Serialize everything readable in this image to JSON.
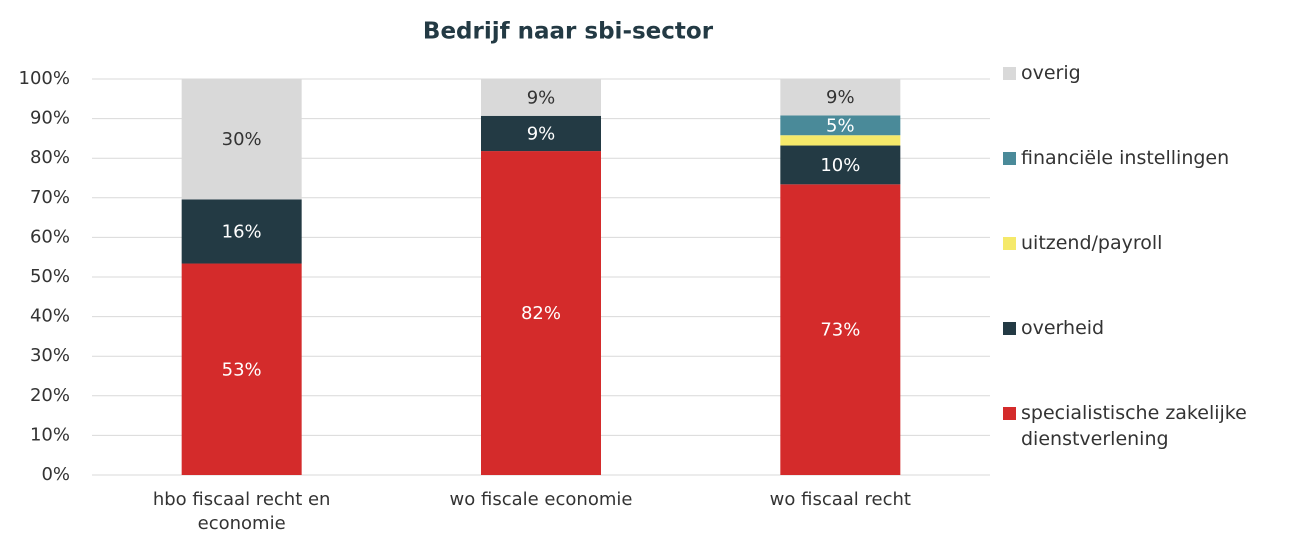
{
  "chart_data": {
    "type": "stacked_bar",
    "title": "Bedrijf naar sbi-sector",
    "categories": [
      "hbo fiscaal recht en economie",
      "wo fiscale economie",
      "wo fiscaal recht"
    ],
    "series": [
      {
        "name": "specialistische zakelijke dienstverlening",
        "color": "#d42b2b",
        "values": [
          53.4,
          81.8,
          73.4
        ],
        "value_labels": [
          "53%",
          "82%",
          "73%"
        ]
      },
      {
        "name": "overheid",
        "color": "#233a44",
        "values": [
          16.2,
          8.9,
          9.8
        ],
        "value_labels": [
          "16%",
          "9%",
          "10%"
        ]
      },
      {
        "name": "uitzend/payroll",
        "color": "#f5e96a",
        "values": [
          null,
          null,
          2.6
        ],
        "value_labels": [
          null,
          null,
          null
        ]
      },
      {
        "name": "financiële instellingen",
        "color": "#4a8a99",
        "values": [
          null,
          null,
          5.0
        ],
        "value_labels": [
          null,
          null,
          "5%"
        ]
      },
      {
        "name": "overig",
        "color": "#d9d9d9",
        "values": [
          30.4,
          9.3,
          9.2
        ],
        "value_labels": [
          "30%",
          "9%",
          "9%"
        ]
      }
    ],
    "ylim": [
      0,
      100
    ],
    "yticks": [
      {
        "value": 0,
        "label": "0%"
      },
      {
        "value": 10,
        "label": "10%"
      },
      {
        "value": 20,
        "label": "20%"
      },
      {
        "value": 30,
        "label": "30%"
      },
      {
        "value": 40,
        "label": "40%"
      },
      {
        "value": 50,
        "label": "50%"
      },
      {
        "value": 60,
        "label": "60%"
      },
      {
        "value": 70,
        "label": "70%"
      },
      {
        "value": 80,
        "label": "80%"
      },
      {
        "value": 90,
        "label": "90%"
      },
      {
        "value": 100,
        "label": "100%"
      }
    ],
    "grid": true,
    "legend": "right"
  }
}
